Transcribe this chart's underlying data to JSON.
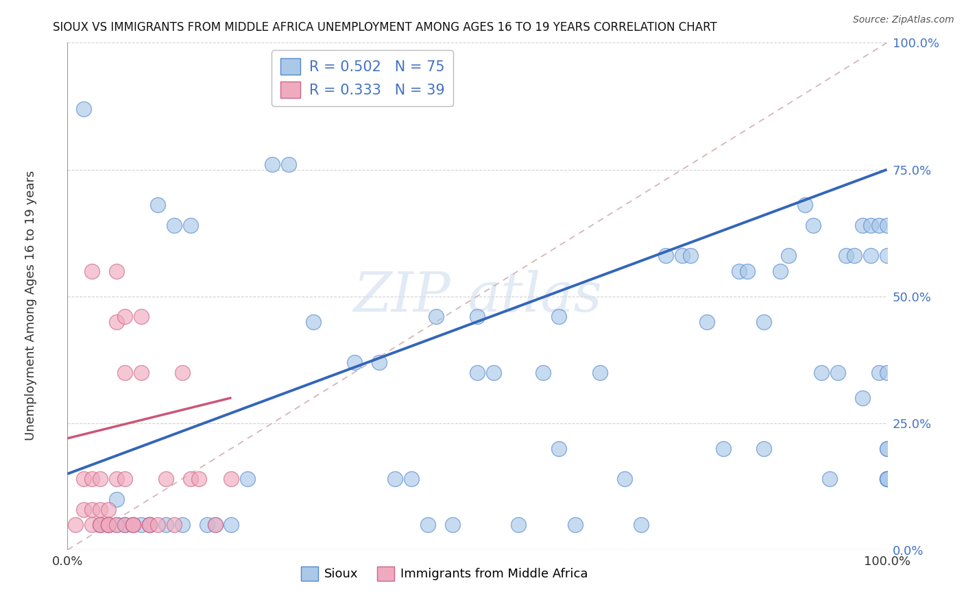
{
  "title": "SIOUX VS IMMIGRANTS FROM MIDDLE AFRICA UNEMPLOYMENT AMONG AGES 16 TO 19 YEARS CORRELATION CHART",
  "source": "Source: ZipAtlas.com",
  "ylabel": "Unemployment Among Ages 16 to 19 years",
  "ytick_labels": [
    "0.0%",
    "25.0%",
    "50.0%",
    "75.0%",
    "100.0%"
  ],
  "ytick_values": [
    0.0,
    0.25,
    0.5,
    0.75,
    1.0
  ],
  "xtick_labels": [
    "0.0%",
    "100.0%"
  ],
  "xtick_values": [
    0.0,
    1.0
  ],
  "legend1_r": "0.502",
  "legend1_n": "75",
  "legend2_r": "0.333",
  "legend2_n": "39",
  "sioux_color": "#aac8e8",
  "immigrants_color": "#f0aabf",
  "sioux_edge_color": "#5588cc",
  "immigrants_edge_color": "#cc6688",
  "sioux_line_color": "#3366bb",
  "immigrants_line_color": "#cc5577",
  "diag_line_color": "#ccaaaa",
  "watermark_color": "#d0ddef",
  "background_color": "#ffffff",
  "grid_color": "#cccccc",
  "ytick_color": "#4472c4",
  "title_color": "#111111",
  "source_color": "#555555",
  "ylabel_color": "#333333",
  "sioux_x": [
    0.02,
    0.04,
    0.05,
    0.06,
    0.06,
    0.07,
    0.07,
    0.08,
    0.09,
    0.1,
    0.1,
    0.11,
    0.12,
    0.13,
    0.14,
    0.15,
    0.17,
    0.18,
    0.2,
    0.22,
    0.25,
    0.27,
    0.3,
    0.35,
    0.38,
    0.4,
    0.42,
    0.44,
    0.45,
    0.47,
    0.5,
    0.5,
    0.52,
    0.55,
    0.58,
    0.6,
    0.6,
    0.62,
    0.65,
    0.68,
    0.7,
    0.73,
    0.75,
    0.76,
    0.78,
    0.8,
    0.82,
    0.83,
    0.85,
    0.85,
    0.87,
    0.88,
    0.9,
    0.91,
    0.92,
    0.93,
    0.94,
    0.95,
    0.96,
    0.97,
    0.97,
    0.98,
    0.98,
    0.99,
    0.99,
    1.0,
    1.0,
    1.0,
    1.0,
    1.0,
    1.0,
    1.0,
    1.0,
    1.0,
    1.0
  ],
  "sioux_y": [
    0.87,
    0.05,
    0.05,
    0.05,
    0.1,
    0.05,
    0.05,
    0.05,
    0.05,
    0.05,
    0.05,
    0.68,
    0.05,
    0.64,
    0.05,
    0.64,
    0.05,
    0.05,
    0.05,
    0.14,
    0.76,
    0.76,
    0.45,
    0.37,
    0.37,
    0.14,
    0.14,
    0.05,
    0.46,
    0.05,
    0.46,
    0.35,
    0.35,
    0.05,
    0.35,
    0.2,
    0.46,
    0.05,
    0.35,
    0.14,
    0.05,
    0.58,
    0.58,
    0.58,
    0.45,
    0.2,
    0.55,
    0.55,
    0.2,
    0.45,
    0.55,
    0.58,
    0.68,
    0.64,
    0.35,
    0.14,
    0.35,
    0.58,
    0.58,
    0.3,
    0.64,
    0.58,
    0.64,
    0.35,
    0.64,
    0.14,
    0.14,
    0.58,
    0.64,
    0.2,
    0.35,
    0.14,
    0.14,
    0.14,
    0.2
  ],
  "immigrants_x": [
    0.01,
    0.02,
    0.02,
    0.03,
    0.03,
    0.03,
    0.03,
    0.04,
    0.04,
    0.04,
    0.04,
    0.05,
    0.05,
    0.05,
    0.05,
    0.05,
    0.06,
    0.06,
    0.06,
    0.06,
    0.07,
    0.07,
    0.07,
    0.07,
    0.08,
    0.08,
    0.08,
    0.09,
    0.09,
    0.1,
    0.1,
    0.11,
    0.12,
    0.13,
    0.14,
    0.15,
    0.16,
    0.18,
    0.2
  ],
  "immigrants_y": [
    0.05,
    0.14,
    0.08,
    0.55,
    0.08,
    0.14,
    0.05,
    0.05,
    0.08,
    0.14,
    0.05,
    0.08,
    0.05,
    0.05,
    0.05,
    0.05,
    0.55,
    0.14,
    0.05,
    0.45,
    0.46,
    0.35,
    0.14,
    0.05,
    0.05,
    0.05,
    0.05,
    0.46,
    0.35,
    0.05,
    0.05,
    0.05,
    0.14,
    0.05,
    0.35,
    0.14,
    0.14,
    0.05,
    0.14
  ],
  "sioux_line_x0": 0.0,
  "sioux_line_y0": 0.15,
  "sioux_line_x1": 1.0,
  "sioux_line_y1": 0.75,
  "immigrants_line_x0": 0.0,
  "immigrants_line_y0": 0.22,
  "immigrants_line_x1": 0.2,
  "immigrants_line_y1": 0.3
}
